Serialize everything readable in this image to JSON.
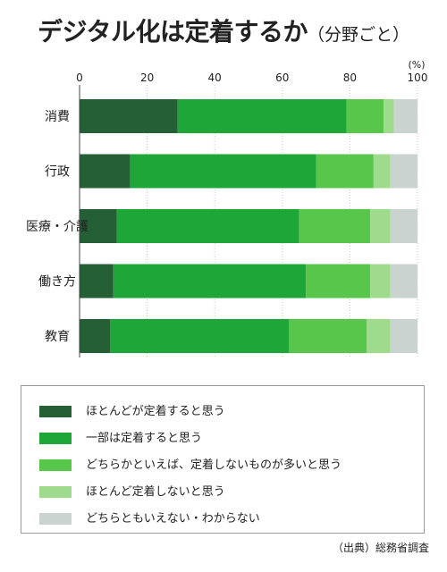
{
  "title": "デジタル化は定着するか",
  "subtitle": "（分野ごと）",
  "source": "（出典）総務省調査",
  "chart_data": {
    "type": "bar",
    "orientation": "horizontal",
    "stacked": true,
    "categories": [
      "消費",
      "行政",
      "医療・介護",
      "働き方",
      "教育"
    ],
    "series": [
      {
        "name": "ほとんどが定着すると思う",
        "color": "#245f36",
        "values": [
          29,
          15,
          11,
          10,
          9
        ]
      },
      {
        "name": "一部は定着すると思う",
        "color": "#1ea639",
        "values": [
          50,
          55,
          54,
          57,
          53
        ]
      },
      {
        "name": "どちらかといえば、定着しないものが多いと思う",
        "color": "#57c64b",
        "values": [
          11,
          17,
          21,
          19,
          23
        ]
      },
      {
        "name": "ほとんど定着しないと思う",
        "color": "#9fdb8d",
        "values": [
          3,
          5,
          6,
          6,
          7
        ]
      },
      {
        "name": "どちらともいえない・わからない",
        "color": "#cbd3d0",
        "values": [
          7,
          8,
          8,
          8,
          8
        ]
      }
    ],
    "xlim": [
      0,
      100
    ],
    "xticks": [
      0,
      20,
      40,
      60,
      80,
      100
    ],
    "xunit": "(%)",
    "grid": true,
    "legend_position": "bottom"
  }
}
